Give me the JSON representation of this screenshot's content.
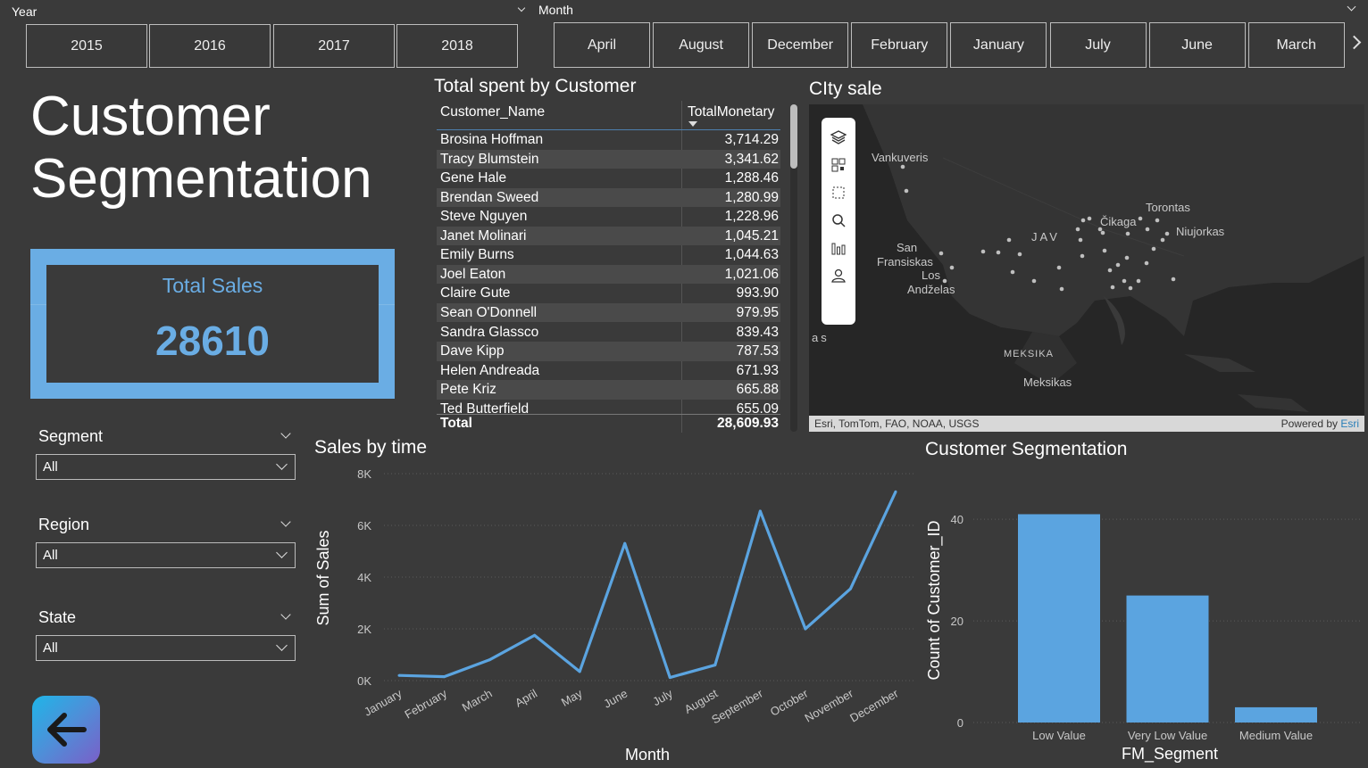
{
  "year_slicer": {
    "title": "Year",
    "items": [
      "2015",
      "2016",
      "2017",
      "2018"
    ]
  },
  "month_slicer": {
    "title": "Month",
    "items": [
      "April",
      "August",
      "December",
      "February",
      "January",
      "July",
      "June",
      "March"
    ]
  },
  "page_title_line1": "Customer",
  "page_title_line2": "Segmentation",
  "kpi": {
    "label": "Total Sales",
    "value": "28610"
  },
  "filters": [
    {
      "label": "Segment",
      "value": "All"
    },
    {
      "label": "Region",
      "value": "All"
    },
    {
      "label": "State",
      "value": "All"
    }
  ],
  "customer_table": {
    "title": "Total spent by Customer",
    "col_name": "Customer_Name",
    "col_value": "TotalMonetary",
    "rows": [
      {
        "name": "Brosina Hoffman",
        "value": "3,714.29"
      },
      {
        "name": "Tracy Blumstein",
        "value": "3,341.62"
      },
      {
        "name": "Gene Hale",
        "value": "1,288.46"
      },
      {
        "name": "Brendan Sweed",
        "value": "1,280.99"
      },
      {
        "name": "Steve Nguyen",
        "value": "1,228.96"
      },
      {
        "name": "Janet Molinari",
        "value": "1,045.21"
      },
      {
        "name": "Emily Burns",
        "value": "1,044.63"
      },
      {
        "name": "Joel Eaton",
        "value": "1,021.06"
      },
      {
        "name": "Claire Gute",
        "value": "993.90"
      },
      {
        "name": "Sean O'Donnell",
        "value": "979.95"
      },
      {
        "name": "Sandra Glassco",
        "value": "839.43"
      },
      {
        "name": "Dave Kipp",
        "value": "787.53"
      },
      {
        "name": "Helen Andreada",
        "value": "671.93"
      },
      {
        "name": "Pete Kriz",
        "value": "665.88"
      },
      {
        "name": "Ted Butterfield",
        "value": "655.09"
      }
    ],
    "total_label": "Total",
    "total_value": "28,609.93"
  },
  "map": {
    "title": "CIty sale",
    "labels": [
      "Vankuveris",
      "Čikaga",
      "Torontas",
      "Niujorkas",
      "JAV",
      "San",
      "Fransiskas",
      "Los",
      "Andželas",
      "as",
      "MEKSIKA",
      "Meksikas"
    ],
    "attribution": "Esri, TomTom, FAO, NOAA, USGS",
    "powered_prefix": "Powered by ",
    "powered_brand": "Esri",
    "tools": [
      "layers-icon",
      "qr-icon",
      "select-rect-icon",
      "search-icon",
      "bar-chart-icon",
      "person-icon"
    ]
  },
  "colors": {
    "accent": "#5ba4e0",
    "background": "#3a3a3a",
    "kpi_frame": "#6aade4"
  },
  "line_chart_data": {
    "type": "line",
    "title": "Sales by time",
    "xlabel": "Month",
    "ylabel": "Sum of Sales",
    "categories": [
      "January",
      "February",
      "March",
      "April",
      "May",
      "June",
      "July",
      "August",
      "September",
      "October",
      "November",
      "December"
    ],
    "values": [
      200,
      150,
      800,
      1750,
      350,
      5300,
      120,
      600,
      6550,
      2000,
      3550,
      7300
    ],
    "ylim": [
      0,
      8000
    ],
    "yticks": [
      "0K",
      "2K",
      "4K",
      "6K",
      "8K"
    ]
  },
  "bar_chart_data": {
    "type": "bar",
    "title": "Customer Segmentation",
    "xlabel": "FM_Segment",
    "ylabel": "Count of Customer_ID",
    "categories": [
      "Low Value",
      "Very Low Value",
      "Medium Value"
    ],
    "values": [
      41,
      25,
      3
    ],
    "ylim": [
      0,
      46
    ],
    "yticks": [
      "0",
      "20",
      "40"
    ]
  }
}
